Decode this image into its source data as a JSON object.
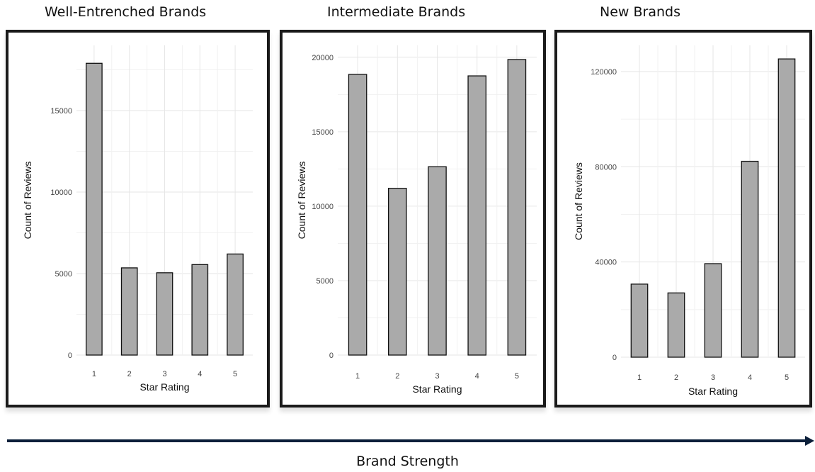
{
  "chart_data": [
    {
      "type": "bar",
      "title": "Well-Entrenched Brands",
      "xlabel": "Star Rating",
      "ylabel": "Count of Reviews",
      "categories": [
        "1",
        "2",
        "3",
        "4",
        "5"
      ],
      "values": [
        17900,
        5350,
        5050,
        5550,
        6200
      ],
      "ylim": [
        0,
        19000
      ],
      "yticks": [
        0,
        5000,
        10000,
        15000
      ],
      "grid": true,
      "bar_color": "#aaaaaa"
    },
    {
      "type": "bar",
      "title": "Intermediate Brands",
      "xlabel": "Star Rating",
      "ylabel": "Count of Reviews",
      "categories": [
        "1",
        "2",
        "3",
        "4",
        "5"
      ],
      "values": [
        18850,
        11200,
        12650,
        18750,
        19850
      ],
      "ylim": [
        0,
        20800
      ],
      "yticks": [
        0,
        5000,
        10000,
        15000,
        20000
      ],
      "grid": true,
      "bar_color": "#aaaaaa"
    },
    {
      "type": "bar",
      "title": "New Brands",
      "xlabel": "Star Rating",
      "ylabel": "Count of Reviews",
      "categories": [
        "1",
        "2",
        "3",
        "4",
        "5"
      ],
      "values": [
        30700,
        27000,
        39300,
        82300,
        125300
      ],
      "ylim": [
        0,
        131000
      ],
      "yticks": [
        0,
        40000,
        80000,
        120000
      ],
      "grid": true,
      "bar_color": "#aaaaaa"
    }
  ],
  "footer": {
    "label": "Brand Strength"
  },
  "colors": {
    "frame": "#1a1a1a",
    "bar": "#aaaaaa",
    "grid": "#e6e6e6",
    "arrow": "#0b1f3a"
  }
}
